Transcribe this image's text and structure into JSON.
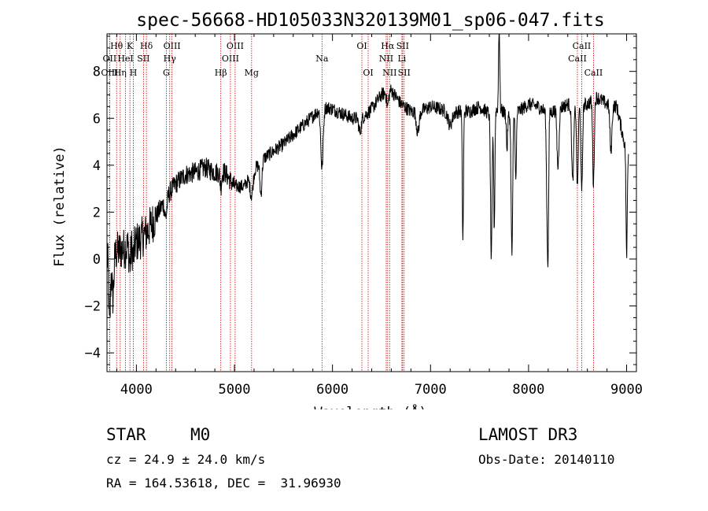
{
  "chart_data": {
    "type": "line",
    "title": "spec-56668-HD105033N320139M01_sp06-047.fits",
    "xlabel": "Wavelength (Å)",
    "ylabel": "Flux (relative)",
    "xlim": [
      3700,
      9100
    ],
    "ylim": [
      -4.8,
      9.6
    ],
    "xticks": [
      4000,
      5000,
      6000,
      7000,
      8000,
      9000
    ],
    "yticks": [
      -4,
      -2,
      0,
      2,
      4,
      6,
      8
    ],
    "xtick_labels": [
      "4000",
      "5000",
      "6000",
      "7000",
      "8000",
      "9000"
    ],
    "ytick_labels": [
      "−4",
      "−2",
      "0",
      "2",
      "4",
      "6",
      "8"
    ],
    "series": [
      {
        "name": "flux",
        "continuum": [
          [
            3700,
            0.0
          ],
          [
            3800,
            0.3
          ],
          [
            3900,
            0.5
          ],
          [
            4000,
            0.7
          ],
          [
            4100,
            1.1
          ],
          [
            4200,
            1.8
          ],
          [
            4300,
            2.6
          ],
          [
            4400,
            3.2
          ],
          [
            4500,
            3.6
          ],
          [
            4600,
            3.7
          ],
          [
            4700,
            3.9
          ],
          [
            4800,
            3.7
          ],
          [
            4900,
            3.7
          ],
          [
            5000,
            3.1
          ],
          [
            5100,
            3.1
          ],
          [
            5200,
            3.8
          ],
          [
            5300,
            4.3
          ],
          [
            5400,
            4.6
          ],
          [
            5500,
            4.9
          ],
          [
            5600,
            5.3
          ],
          [
            5700,
            5.7
          ],
          [
            5800,
            6.1
          ],
          [
            5900,
            6.5
          ],
          [
            6000,
            6.4
          ],
          [
            6100,
            6.2
          ],
          [
            6200,
            6.0
          ],
          [
            6300,
            6.0
          ],
          [
            6400,
            6.4
          ],
          [
            6500,
            7.0
          ],
          [
            6600,
            7.2
          ],
          [
            6700,
            6.6
          ],
          [
            6800,
            6.3
          ],
          [
            6900,
            6.3
          ],
          [
            7000,
            6.5
          ],
          [
            7100,
            6.4
          ],
          [
            7200,
            6.2
          ],
          [
            7300,
            6.3
          ],
          [
            7400,
            6.3
          ],
          [
            7500,
            6.5
          ],
          [
            7600,
            6.2
          ],
          [
            7700,
            6.4
          ],
          [
            7800,
            6.1
          ],
          [
            7900,
            6.3
          ],
          [
            8000,
            6.6
          ],
          [
            8100,
            6.5
          ],
          [
            8200,
            6.2
          ],
          [
            8300,
            6.4
          ],
          [
            8400,
            6.6
          ],
          [
            8500,
            6.5
          ],
          [
            8600,
            6.6
          ],
          [
            8700,
            6.9
          ],
          [
            8800,
            6.6
          ],
          [
            8900,
            6.5
          ],
          [
            9000,
            4.5
          ]
        ],
        "features": [
          [
            3727,
            -3.0,
            8
          ],
          [
            3760,
            -1.8,
            10
          ],
          [
            3934,
            -0.8,
            8
          ],
          [
            3969,
            -0.6,
            8
          ],
          [
            4300,
            -0.8,
            12
          ],
          [
            4861,
            -0.6,
            8
          ],
          [
            5175,
            -0.9,
            15
          ],
          [
            5270,
            -1.4,
            10
          ],
          [
            5893,
            -2.6,
            12
          ],
          [
            6280,
            -0.6,
            12
          ],
          [
            6563,
            -0.6,
            10
          ],
          [
            6870,
            -0.9,
            14
          ],
          [
            7200,
            -0.5,
            20
          ],
          [
            7330,
            -5.5,
            6
          ],
          [
            7620,
            -6.3,
            8
          ],
          [
            7650,
            -5.0,
            6
          ],
          [
            7700,
            3.6,
            6
          ],
          [
            7780,
            -1.5,
            6
          ],
          [
            7830,
            -6.0,
            8
          ],
          [
            7870,
            -3.0,
            6
          ],
          [
            8190,
            -4.2,
            8
          ],
          [
            8200,
            -4.0,
            6
          ],
          [
            8300,
            -2.5,
            10
          ],
          [
            8450,
            -3.3,
            10
          ],
          [
            8498,
            -3.5,
            8
          ],
          [
            8542,
            -3.8,
            8
          ],
          [
            8662,
            -3.6,
            8
          ],
          [
            8840,
            -2.0,
            10
          ],
          [
            9000,
            -4.5,
            6
          ]
        ]
      }
    ],
    "line_markers": [
      {
        "label": "Hθ",
        "x": 3798,
        "row": 1
      },
      {
        "label": "OII",
        "x": 3727,
        "row": 2
      },
      {
        "label": "OIII",
        "x": 3727,
        "row": 3
      },
      {
        "label": "HeI",
        "x": 3889,
        "row": 2
      },
      {
        "label": "Hη",
        "x": 3835,
        "row": 3
      },
      {
        "label": "K",
        "x": 3934,
        "row": 1
      },
      {
        "label": "SII",
        "x": 4072,
        "row": 2
      },
      {
        "label": "H",
        "x": 3969,
        "row": 3
      },
      {
        "label": "Hδ",
        "x": 4102,
        "row": 1
      },
      {
        "label": "OIII",
        "x": 4363,
        "row": 1
      },
      {
        "label": "Hγ",
        "x": 4340,
        "row": 2
      },
      {
        "label": "G",
        "x": 4305,
        "row": 3
      },
      {
        "label": "Hβ",
        "x": 4861,
        "row": 3
      },
      {
        "label": "OIII",
        "x": 5007,
        "row": 1
      },
      {
        "label": "OIII",
        "x": 4959,
        "row": 2
      },
      {
        "label": "Mg",
        "x": 5175,
        "row": 3
      },
      {
        "label": "Na",
        "x": 5893,
        "row": 2
      },
      {
        "label": "OI",
        "x": 6300,
        "row": 1
      },
      {
        "label": "OI",
        "x": 6364,
        "row": 3
      },
      {
        "label": "Hα",
        "x": 6563,
        "row": 1
      },
      {
        "label": "SII",
        "x": 6716,
        "row": 1
      },
      {
        "label": "NII",
        "x": 6548,
        "row": 2
      },
      {
        "label": "Li",
        "x": 6708,
        "row": 2
      },
      {
        "label": "NII",
        "x": 6583,
        "row": 3
      },
      {
        "label": "SII",
        "x": 6731,
        "row": 3
      },
      {
        "label": "CaII",
        "x": 8498,
        "row": 2
      },
      {
        "label": "CaII",
        "x": 8542,
        "row": 1
      },
      {
        "label": "CaII",
        "x": 8662,
        "row": 3
      }
    ]
  },
  "info": {
    "type_label": "STAR",
    "subclass": "M0",
    "survey": "LAMOST DR3",
    "cz": "cz = 24.9 ± 24.0 km/s",
    "obs_date": "Obs-Date: 20140110",
    "coords": "RA = 164.53618, DEC =  31.96930"
  },
  "colors": {
    "axis": "#000000",
    "marker": "#cc0000",
    "spectrum": "#000000"
  }
}
